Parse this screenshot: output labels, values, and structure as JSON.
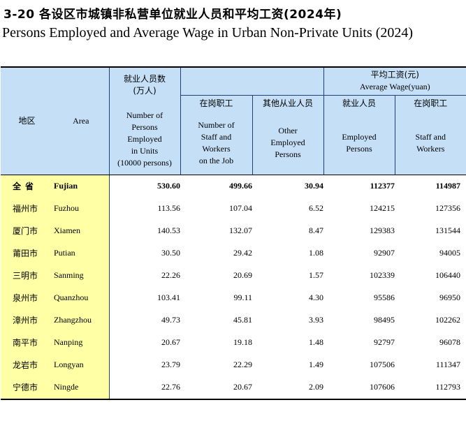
{
  "title": {
    "cn": "3-20 各设区市城镇非私营单位就业人员和平均工资(2024年)",
    "en": "Persons Employed and Average Wage in  Urban Non-Private Units (2024)"
  },
  "header": {
    "region_cn": "地区",
    "region_en": "Area",
    "employed_cn_1": "就业人员数",
    "employed_cn_2": "(万人)",
    "employed_en_1": "Number of",
    "employed_en_2": "Persons",
    "employed_en_3": "Employed",
    "employed_en_4": "in Units",
    "employed_en_5": "(10000 persons)",
    "onjob_cn": "在岗职工",
    "onjob_en_1": "Number of",
    "onjob_en_2": "Staff and",
    "onjob_en_3": "Workers",
    "onjob_en_4": "on the Job",
    "other_cn": "其他从业人员",
    "other_en_1": "Other",
    "other_en_2": "Employed",
    "other_en_3": "Persons",
    "wage_cn": "平均工资(元)",
    "wage_en": "Average Wage(yuan)",
    "wage_emp_cn": "就业人员",
    "wage_emp_en_1": "Employed",
    "wage_emp_en_2": "Persons",
    "wage_staff_cn": "在岗职工",
    "wage_staff_en_1": "Staff and",
    "wage_staff_en_2": "Workers"
  },
  "rows": [
    {
      "cn": "全省",
      "en": "Fujian",
      "employed": "530.60",
      "onjob": "499.66",
      "other": "30.94",
      "wage_emp": "112377",
      "wage_staff": "114987"
    },
    {
      "cn": "福州市",
      "en": "Fuzhou",
      "employed": "113.56",
      "onjob": "107.04",
      "other": "6.52",
      "wage_emp": "124215",
      "wage_staff": "127356"
    },
    {
      "cn": "厦门市",
      "en": "Xiamen",
      "employed": "140.53",
      "onjob": "132.07",
      "other": "8.47",
      "wage_emp": "129383",
      "wage_staff": "131544"
    },
    {
      "cn": "莆田市",
      "en": "Putian",
      "employed": "30.50",
      "onjob": "29.42",
      "other": "1.08",
      "wage_emp": "92907",
      "wage_staff": "94005"
    },
    {
      "cn": "三明市",
      "en": "Sanming",
      "employed": "22.26",
      "onjob": "20.69",
      "other": "1.57",
      "wage_emp": "102339",
      "wage_staff": "106440"
    },
    {
      "cn": "泉州市",
      "en": "Quanzhou",
      "employed": "103.41",
      "onjob": "99.11",
      "other": "4.30",
      "wage_emp": "95586",
      "wage_staff": "96950"
    },
    {
      "cn": "漳州市",
      "en": "Zhangzhou",
      "employed": "49.73",
      "onjob": "45.81",
      "other": "3.93",
      "wage_emp": "98495",
      "wage_staff": "102262"
    },
    {
      "cn": "南平市",
      "en": "Nanping",
      "employed": "20.67",
      "onjob": "19.18",
      "other": "1.48",
      "wage_emp": "92797",
      "wage_staff": "96078"
    },
    {
      "cn": "龙岩市",
      "en": "Longyan",
      "employed": "23.79",
      "onjob": "22.29",
      "other": "1.49",
      "wage_emp": "107506",
      "wage_staff": "111347"
    },
    {
      "cn": "宁德市",
      "en": "Ningde",
      "employed": "22.76",
      "onjob": "20.67",
      "other": "2.09",
      "wage_emp": "107606",
      "wage_staff": "112793"
    }
  ]
}
